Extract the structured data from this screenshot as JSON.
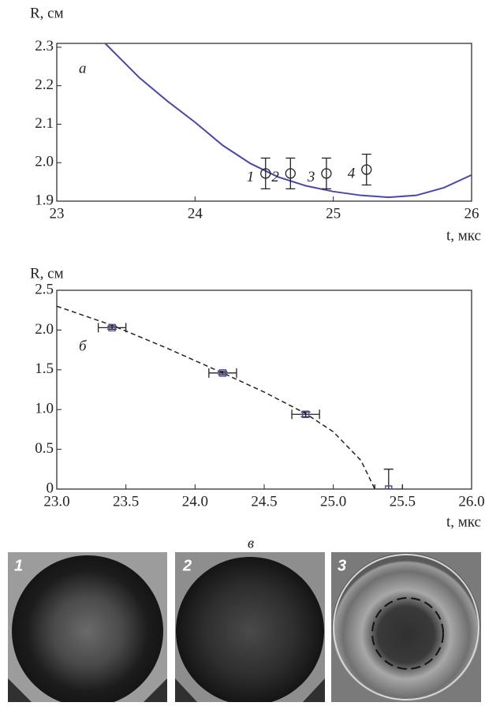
{
  "chart_data": [
    {
      "type": "line",
      "ylabel": "R, см",
      "xlabel": "t, мкс",
      "panel_label": "а",
      "xlim": [
        23,
        26
      ],
      "xticks": [
        23,
        24,
        25,
        26
      ],
      "ylim": [
        1.9,
        2.31
      ],
      "yticks": [
        {
          "value": 1.9,
          "label": "1.9"
        },
        {
          "value": 2.0,
          "label": "2.0"
        },
        2.1,
        2.2,
        2.3
      ],
      "curve": {
        "color": "#4848a8",
        "x": [
          23.35,
          23.6,
          23.8,
          24.0,
          24.2,
          24.4,
          24.6,
          24.8,
          25.0,
          25.2,
          25.4,
          25.6,
          25.8,
          26.0
        ],
        "values": [
          2.31,
          2.22,
          2.16,
          2.105,
          2.045,
          1.998,
          1.963,
          1.94,
          1.925,
          1.915,
          1.91,
          1.915,
          1.935,
          1.968
        ]
      },
      "points": {
        "marker": "circle",
        "color": "#222222",
        "x": [
          24.51,
          24.69,
          24.95,
          25.24
        ],
        "values": [
          1.972,
          1.972,
          1.972,
          1.982
        ],
        "errors": [
          0.04,
          0.04,
          0.04,
          0.04
        ],
        "labels": [
          "1",
          "2",
          "3",
          "4"
        ]
      }
    },
    {
      "type": "line",
      "ylabel": "R, см",
      "xlabel": "t, мкс",
      "panel_label": "б",
      "xlim": [
        23,
        26
      ],
      "xticks": [
        {
          "value": 23,
          "label": "23.0"
        },
        23.5,
        {
          "value": 24,
          "label": "24.0"
        },
        24.5,
        {
          "value": 25,
          "label": "25.0"
        },
        25.5,
        {
          "value": 26,
          "label": "26.0"
        }
      ],
      "ylim": [
        0,
        2.5
      ],
      "yticks": [
        0,
        0.5,
        {
          "value": 1,
          "label": "1.0"
        },
        1.5,
        {
          "value": 2,
          "label": "2.0"
        },
        2.5
      ],
      "curve": {
        "color": "#222222",
        "dashed": true,
        "x": [
          23.0,
          23.4,
          23.8,
          24.2,
          24.5,
          24.8,
          25.0,
          25.2,
          25.3
        ],
        "values": [
          2.3,
          2.06,
          1.77,
          1.46,
          1.22,
          0.95,
          0.72,
          0.36,
          0.0
        ]
      },
      "points": {
        "marker": "square",
        "color": "#5050a0",
        "x": [
          23.4,
          24.2,
          24.8,
          25.4
        ],
        "values": [
          2.03,
          1.46,
          0.94,
          0
        ],
        "errors": [
          0.02,
          0.02,
          0.03,
          0.25
        ],
        "x_errors": [
          0.1,
          0.1,
          0.1,
          0.1
        ]
      }
    }
  ],
  "photos": {
    "title": "в",
    "labels": [
      "1",
      "2",
      "3"
    ]
  }
}
